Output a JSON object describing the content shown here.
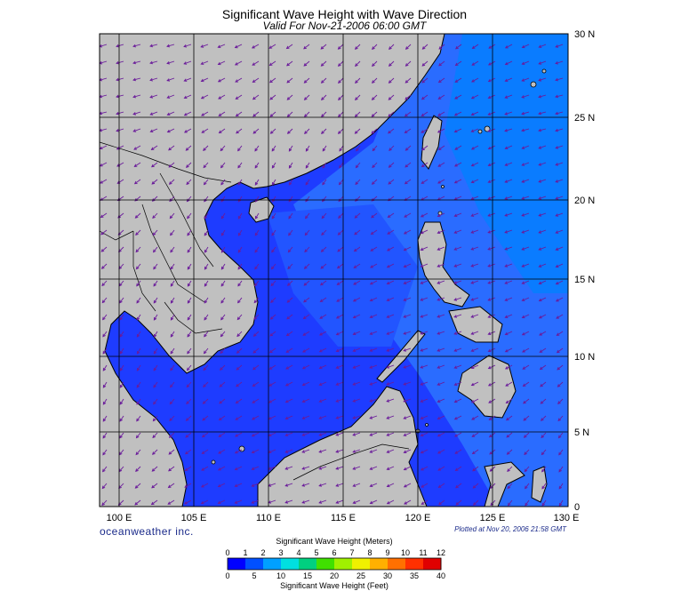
{
  "title": "Significant Wave Height with Wave Direction",
  "subtitle": "Valid For Nov-21-2006 06:00 GMT",
  "lon_labels": [
    "100 E",
    "105 E",
    "110 E",
    "115 E",
    "120 E",
    "125 E",
    "130 E"
  ],
  "lat_labels": [
    "30 N",
    "25 N",
    "20 N",
    "15 N",
    "10 N",
    "5 N",
    "0"
  ],
  "brand": "oceanweather inc.",
  "plotted": "Plotted at Nov 20, 2006 21:58 GMT",
  "colorbar": {
    "title_top": "Significant Wave Height (Meters)",
    "title_bottom": "Significant Wave Height (Feet)",
    "meters_ticks": [
      "0",
      "1",
      "2",
      "3",
      "4",
      "5",
      "6",
      "7",
      "8",
      "9",
      "10",
      "11",
      "12"
    ],
    "feet_ticks": [
      "0",
      "5",
      "10",
      "15",
      "20",
      "25",
      "30",
      "35",
      "40"
    ],
    "colors": [
      "#0000ff",
      "#0050ff",
      "#00a0ff",
      "#00e0e0",
      "#00d080",
      "#40e000",
      "#a0f000",
      "#f0f000",
      "#ffb000",
      "#ff7000",
      "#ff3000",
      "#e00000"
    ]
  },
  "colors": {
    "land": "#c0c0c0",
    "sea_low": "#1e3cff",
    "sea_mid": "#2a6cff",
    "sea_high": "#0078ff",
    "arrow": "#6a1b9a",
    "grid": "#000000"
  }
}
